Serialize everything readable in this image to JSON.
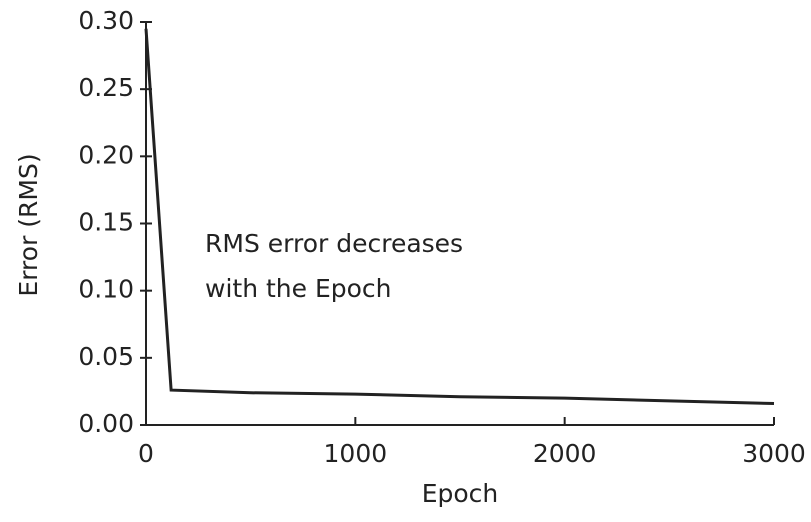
{
  "chart_data": {
    "type": "line",
    "x_label": "Epoch",
    "y_label": "Error (RMS)",
    "annotation": [
      "RMS error decreases",
      "with the Epoch"
    ],
    "series": [
      {
        "name": "RMS error",
        "color": "#222222",
        "x": [
          0,
          120,
          500,
          1000,
          1500,
          2000,
          2500,
          3000
        ],
        "values": [
          0.295,
          0.026,
          0.024,
          0.023,
          0.021,
          0.02,
          0.018,
          0.016
        ]
      }
    ],
    "xlim": [
      0,
      3000
    ],
    "xticks": [
      0,
      1000,
      2000,
      3000
    ],
    "ylim": [
      0,
      0.3
    ],
    "yticks": [
      {
        "value": 0,
        "label": "0.00"
      },
      {
        "value": 0.05,
        "label": "0.05"
      },
      {
        "value": 0.1,
        "label": "0.10"
      },
      {
        "value": 0.15,
        "label": "0.15"
      },
      {
        "value": 0.2,
        "label": "0.20"
      },
      {
        "value": 0.25,
        "label": "0.25"
      },
      {
        "value": 0.3,
        "label": "0.30"
      }
    ],
    "grid": false
  }
}
